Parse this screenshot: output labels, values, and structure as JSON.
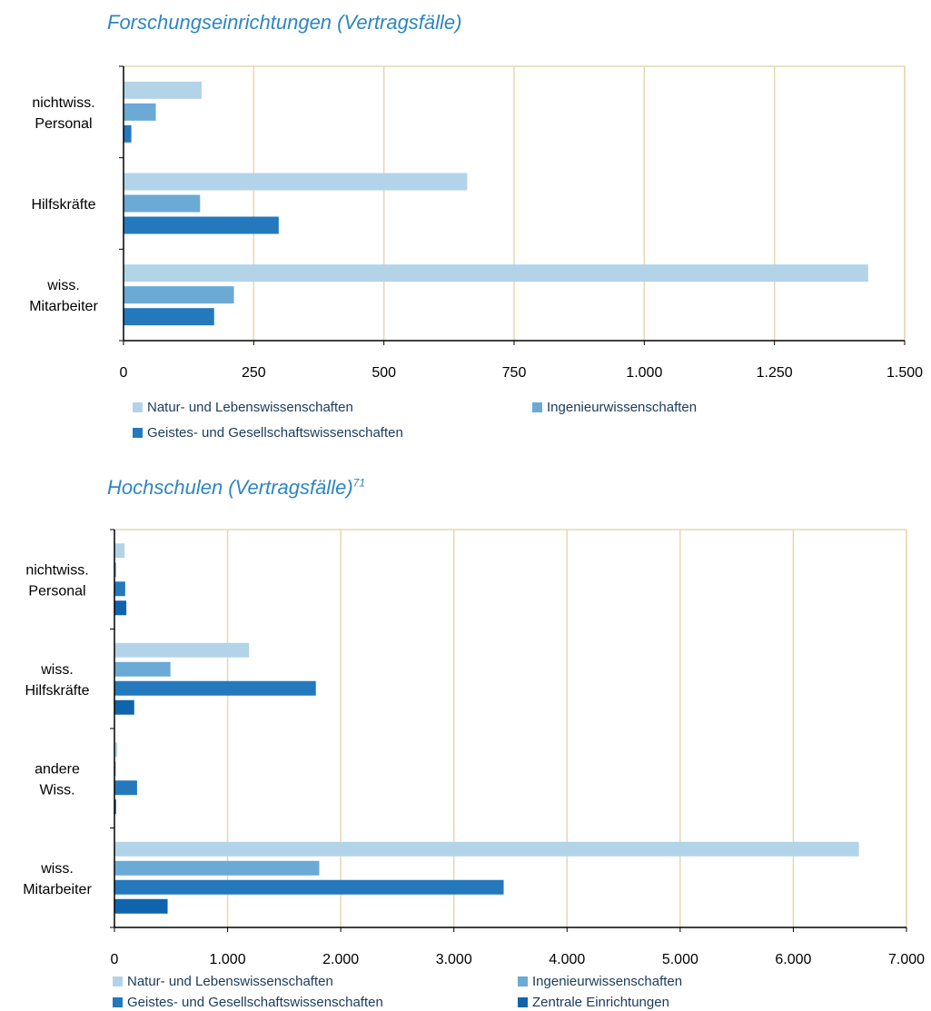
{
  "colors": {
    "natur": "#b3d4e8",
    "ingenieur": "#6aaad5",
    "geistes": "#2479bd",
    "zentrale": "#0f65ad",
    "grid": "#e6d7b0",
    "axis": "#000000"
  },
  "chart_data": [
    {
      "type": "bar",
      "orientation": "horizontal",
      "title": "Forschungseinrichtungen (Vertragsfälle)",
      "title_sup": "",
      "categories": [
        "nichtwiss. Personal",
        "Hilfskräfte",
        "wiss. Mitarbeiter"
      ],
      "category_lines": [
        [
          "nichtwiss.",
          "Personal"
        ],
        [
          "Hilfskräfte"
        ],
        [
          "wiss.",
          "Mitarbeiter"
        ]
      ],
      "series": [
        {
          "name": "Natur- und Lebenswissenschaften",
          "color_key": "natur",
          "values": [
            150,
            660,
            1430
          ]
        },
        {
          "name": "Ingenieurwissenschaften",
          "color_key": "ingenieur",
          "values": [
            62,
            147,
            212
          ]
        },
        {
          "name": "Geistes- und Gesellschaftswissenschaften",
          "color_key": "geistes",
          "values": [
            15,
            298,
            174
          ]
        }
      ],
      "xlim": [
        0,
        1500
      ],
      "x_ticks": [
        0,
        250,
        500,
        750,
        1000,
        1250,
        1500
      ],
      "x_tick_labels": [
        "0",
        "250",
        "500",
        "750",
        "1.000",
        "1.250",
        "1.500"
      ],
      "grid": "vertical",
      "legend": "bottom"
    },
    {
      "type": "bar",
      "orientation": "horizontal",
      "title": "Hochschulen (Vertragsfälle)",
      "title_sup": "71",
      "categories": [
        "nichtwiss. Personal",
        "wiss. Hilfskräfte",
        "andere Wiss.",
        "wiss. Mitarbeiter"
      ],
      "category_lines": [
        [
          "nichtwiss.",
          "Personal"
        ],
        [
          "wiss.",
          "Hilfskräfte"
        ],
        [
          "andere",
          "Wiss."
        ],
        [
          "wiss.",
          "Mitarbeiter"
        ]
      ],
      "series": [
        {
          "name": "Natur- und Lebenswissenschaften",
          "color_key": "natur",
          "values": [
            90,
            1190,
            25,
            6580
          ]
        },
        {
          "name": "Ingenieurwissenschaften",
          "color_key": "ingenieur",
          "values": [
            15,
            495,
            12,
            1810
          ]
        },
        {
          "name": "Geistes- und Gesellschaftswissenschaften",
          "color_key": "geistes",
          "values": [
            95,
            1780,
            200,
            3440
          ]
        },
        {
          "name": "Zentrale Einrichtungen",
          "color_key": "zentrale",
          "values": [
            105,
            175,
            15,
            470
          ]
        }
      ],
      "xlim": [
        0,
        7000
      ],
      "x_ticks": [
        0,
        1000,
        2000,
        3000,
        4000,
        5000,
        6000,
        7000
      ],
      "x_tick_labels": [
        "0",
        "1.000",
        "2.000",
        "3.000",
        "4.000",
        "5.000",
        "6.000",
        "7.000"
      ],
      "grid": "vertical",
      "legend": "bottom"
    }
  ]
}
